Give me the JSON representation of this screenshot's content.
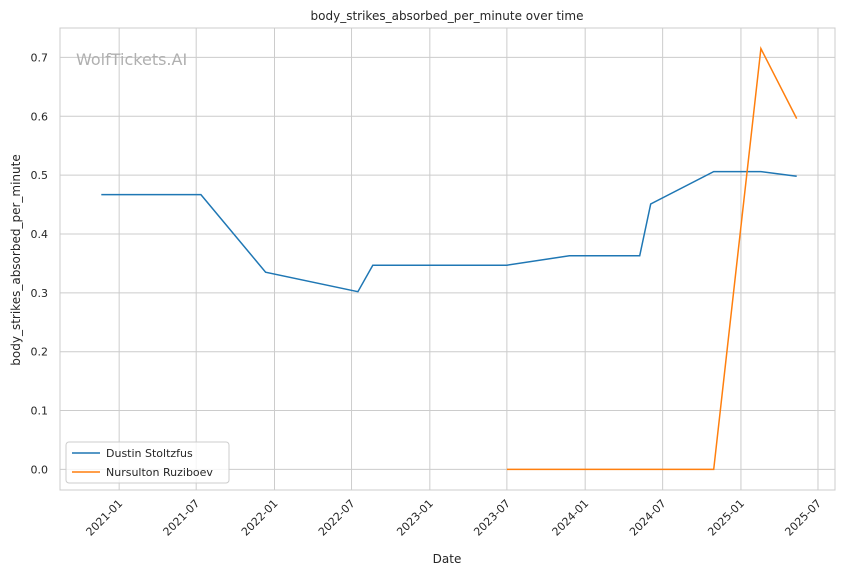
{
  "chart_data": {
    "type": "line",
    "title": "body_strikes_absorbed_per_minute over time",
    "xlabel": "Date",
    "ylabel": "body_strikes_absorbed_per_minute",
    "watermark": "WolfTickets.AI",
    "ylim": [
      -0.035,
      0.75
    ],
    "xlim": [
      "2020-08-15",
      "2025-08-10"
    ],
    "yticks": [
      0.0,
      0.1,
      0.2,
      0.3,
      0.4,
      0.5,
      0.6,
      0.7
    ],
    "ytick_labels": [
      "0.0",
      "0.1",
      "0.2",
      "0.3",
      "0.4",
      "0.5",
      "0.6",
      "0.7"
    ],
    "xticks": [
      "2021-01-01",
      "2021-07-01",
      "2022-01-01",
      "2022-07-01",
      "2023-01-01",
      "2023-07-01",
      "2024-01-01",
      "2024-07-01",
      "2025-01-01",
      "2025-07-01"
    ],
    "xtick_labels": [
      "2021-01",
      "2021-07",
      "2022-01",
      "2022-07",
      "2023-01",
      "2023-07",
      "2024-01",
      "2024-07",
      "2025-01",
      "2025-07"
    ],
    "grid": true,
    "legend_position": "lower-left",
    "series": [
      {
        "name": "Dustin Stoltzfus",
        "color": "#1f77b4",
        "x": [
          "2020-11-20",
          "2021-07-12",
          "2021-12-11",
          "2022-07-16",
          "2022-08-20",
          "2023-07-01",
          "2023-11-25",
          "2024-05-08",
          "2024-06-03",
          "2024-10-29",
          "2025-02-17",
          "2025-05-12"
        ],
        "y": [
          0.467,
          0.467,
          0.335,
          0.302,
          0.347,
          0.347,
          0.363,
          0.363,
          0.451,
          0.506,
          0.506,
          0.498
        ]
      },
      {
        "name": "Nursulton Ruziboev",
        "color": "#ff7f0e",
        "x": [
          "2023-07-01",
          "2024-10-29",
          "2025-02-17",
          "2025-05-12"
        ],
        "y": [
          0.0,
          0.0,
          0.715,
          0.596
        ]
      }
    ]
  }
}
